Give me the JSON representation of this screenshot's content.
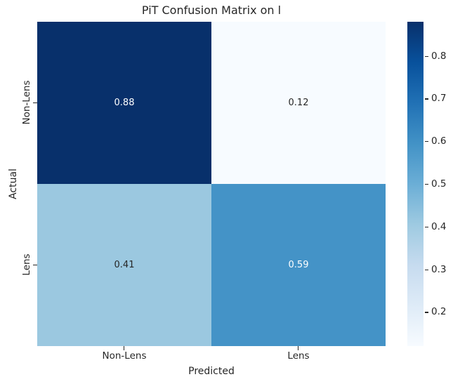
{
  "chart": {
    "title": "PiT Confusion Matrix on l",
    "xlabel": "Predicted",
    "ylabel": "Actual",
    "x_tick_labels": [
      "Non-Lens",
      "Lens"
    ],
    "y_tick_labels": [
      "Non-Lens",
      "Lens"
    ]
  },
  "chart_data": {
    "type": "heatmap",
    "title": "PiT Confusion Matrix on l",
    "xlabel": "Predicted",
    "ylabel": "Actual",
    "x_categories": [
      "Non-Lens",
      "Lens"
    ],
    "y_categories": [
      "Non-Lens",
      "Lens"
    ],
    "values": [
      [
        0.88,
        0.12
      ],
      [
        0.41,
        0.59
      ]
    ],
    "vmin": 0.12,
    "vmax": 0.88,
    "colormap": "Blues",
    "colormap_stops": [
      "#f7fbff",
      "#deebf7",
      "#c6dbef",
      "#9ecae1",
      "#6baed6",
      "#4292c6",
      "#2171b5",
      "#08519c",
      "#08306b"
    ],
    "colorbar_tick_labels": [
      "0.8",
      "0.7",
      "0.6",
      "0.5",
      "0.4",
      "0.3",
      "0.2"
    ],
    "colorbar_tick_values": [
      0.8,
      0.7,
      0.6,
      0.5,
      0.4,
      0.3,
      0.2
    ],
    "grid": false,
    "legend_position": "right-colorbar",
    "annotation_text_colors": {
      "dark_cells": "#ffffff",
      "light_cells": "#262626"
    }
  },
  "cells": [
    {
      "label": "0.88",
      "bg": "#08306b",
      "fg": "#ffffff"
    },
    {
      "label": "0.12",
      "bg": "#f7fbff",
      "fg": "#262626"
    },
    {
      "label": "0.41",
      "bg": "#9bc8e0",
      "fg": "#262626"
    },
    {
      "label": "0.59",
      "bg": "#4493c7",
      "fg": "#ffffff"
    }
  ]
}
